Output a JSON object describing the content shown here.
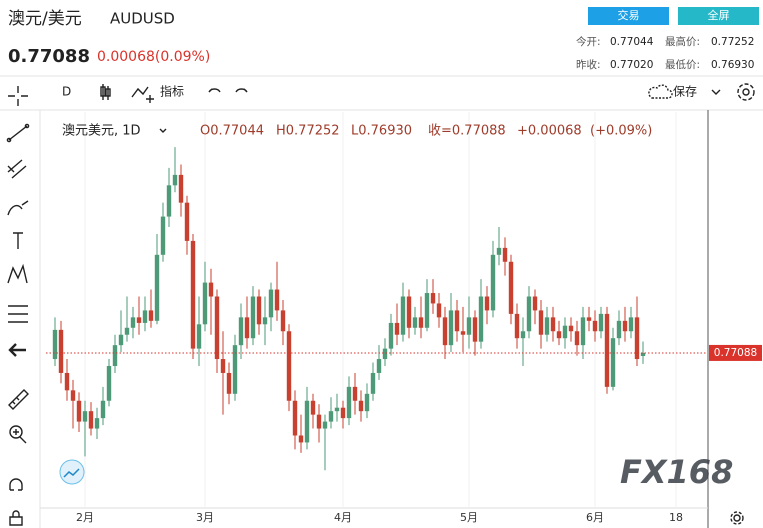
{
  "header": {
    "pair_cn": "澳元/美元",
    "symbol": "AUDUSD",
    "price": "0.77088",
    "change": "0.00068(0.09%)",
    "buttons": [
      "交易",
      "全屏"
    ],
    "stats": [
      [
        "今开:",
        "0.77044",
        "最高价:",
        "0.77252"
      ],
      [
        "昨收:",
        "0.77020",
        "最低价:",
        "0.76930"
      ]
    ]
  },
  "toolbar": {
    "interval": "D",
    "indicators": "指标",
    "save": "保存"
  },
  "legend": {
    "name": "澳元美元, 1D",
    "open": "O0.77044",
    "high": "H0.77252",
    "low": "L0.76930",
    "close": "收=0.77088",
    "change": "+0.00068",
    "change_pct": "(+0.09%)"
  },
  "watermark": "FX168",
  "chart_data": {
    "type": "candlestick",
    "up_color": "#4e9a78",
    "down_color": "#c8402f",
    "last_price": 0.77088,
    "last_price_color": "#d9332b",
    "xlim": [
      -1.5,
      108.5
    ],
    "xticks": [
      {
        "value": 5,
        "label": "2月"
      },
      {
        "value": 25,
        "label": "3月"
      },
      {
        "value": 48,
        "label": "4月"
      },
      {
        "value": 69,
        "label": "5月"
      },
      {
        "value": 90,
        "label": "6月"
      },
      {
        "value": 103.5,
        "label": "18"
      }
    ],
    "ylim": [
      0.749,
      0.8008
    ],
    "ohlc": [
      [
        0.77,
        0.776,
        0.769,
        0.7742
      ],
      [
        0.7742,
        0.7755,
        0.7665,
        0.768
      ],
      [
        0.768,
        0.77,
        0.764,
        0.7655
      ],
      [
        0.7655,
        0.767,
        0.76,
        0.764
      ],
      [
        0.764,
        0.7652,
        0.7595,
        0.761
      ],
      [
        0.761,
        0.764,
        0.756,
        0.7625
      ],
      [
        0.7625,
        0.7638,
        0.759,
        0.76
      ],
      [
        0.76,
        0.763,
        0.7585,
        0.7615
      ],
      [
        0.7615,
        0.766,
        0.7605,
        0.764
      ],
      [
        0.764,
        0.77,
        0.7632,
        0.769
      ],
      [
        0.769,
        0.7735,
        0.768,
        0.772
      ],
      [
        0.772,
        0.777,
        0.771,
        0.7735
      ],
      [
        0.7735,
        0.779,
        0.7725,
        0.7745
      ],
      [
        0.7745,
        0.7775,
        0.773,
        0.776
      ],
      [
        0.776,
        0.779,
        0.7735,
        0.7752
      ],
      [
        0.7752,
        0.779,
        0.774,
        0.777
      ],
      [
        0.777,
        0.78,
        0.7745,
        0.7755
      ],
      [
        0.7755,
        0.788,
        0.775,
        0.785
      ],
      [
        0.785,
        0.7925,
        0.784,
        0.7905
      ],
      [
        0.7905,
        0.7975,
        0.789,
        0.795
      ],
      [
        0.795,
        0.8005,
        0.794,
        0.7965
      ],
      [
        0.7965,
        0.798,
        0.7905,
        0.7925
      ],
      [
        0.7925,
        0.7935,
        0.785,
        0.787
      ],
      [
        0.787,
        0.788,
        0.77,
        0.7715
      ],
      [
        0.7715,
        0.779,
        0.769,
        0.775
      ],
      [
        0.775,
        0.784,
        0.774,
        0.781
      ],
      [
        0.781,
        0.783,
        0.7735,
        0.779
      ],
      [
        0.779,
        0.78,
        0.768,
        0.77
      ],
      [
        0.77,
        0.774,
        0.762,
        0.768
      ],
      [
        0.768,
        0.7695,
        0.7635,
        0.765
      ],
      [
        0.765,
        0.7735,
        0.764,
        0.772
      ],
      [
        0.772,
        0.778,
        0.77,
        0.776
      ],
      [
        0.776,
        0.779,
        0.7715,
        0.773
      ],
      [
        0.773,
        0.7805,
        0.772,
        0.779
      ],
      [
        0.779,
        0.78,
        0.7735,
        0.775
      ],
      [
        0.775,
        0.779,
        0.772,
        0.776
      ],
      [
        0.776,
        0.781,
        0.774,
        0.78
      ],
      [
        0.78,
        0.784,
        0.7755,
        0.777
      ],
      [
        0.777,
        0.7785,
        0.772,
        0.774
      ],
      [
        0.774,
        0.775,
        0.7625,
        0.764
      ],
      [
        0.764,
        0.7655,
        0.757,
        0.759
      ],
      [
        0.759,
        0.762,
        0.7565,
        0.758
      ],
      [
        0.758,
        0.766,
        0.757,
        0.764
      ],
      [
        0.764,
        0.765,
        0.76,
        0.762
      ],
      [
        0.762,
        0.7635,
        0.758,
        0.76
      ],
      [
        0.76,
        0.762,
        0.754,
        0.761
      ],
      [
        0.761,
        0.7645,
        0.76,
        0.7625
      ],
      [
        0.7625,
        0.765,
        0.761,
        0.763
      ],
      [
        0.763,
        0.764,
        0.76,
        0.7615
      ],
      [
        0.7615,
        0.7675,
        0.7605,
        0.766
      ],
      [
        0.766,
        0.768,
        0.762,
        0.764
      ],
      [
        0.764,
        0.7655,
        0.761,
        0.7625
      ],
      [
        0.7625,
        0.7665,
        0.7615,
        0.765
      ],
      [
        0.765,
        0.7695,
        0.764,
        0.768
      ],
      [
        0.768,
        0.772,
        0.767,
        0.77
      ],
      [
        0.77,
        0.773,
        0.769,
        0.7715
      ],
      [
        0.7715,
        0.7765,
        0.7705,
        0.7752
      ],
      [
        0.7752,
        0.778,
        0.772,
        0.7735
      ],
      [
        0.7735,
        0.781,
        0.7725,
        0.779
      ],
      [
        0.779,
        0.78,
        0.773,
        0.7745
      ],
      [
        0.7745,
        0.7775,
        0.7735,
        0.776
      ],
      [
        0.776,
        0.779,
        0.773,
        0.7745
      ],
      [
        0.7745,
        0.7815,
        0.774,
        0.7795
      ],
      [
        0.7795,
        0.7815,
        0.7765,
        0.778
      ],
      [
        0.778,
        0.7795,
        0.7745,
        0.776
      ],
      [
        0.776,
        0.7775,
        0.77,
        0.772
      ],
      [
        0.772,
        0.7795,
        0.771,
        0.777
      ],
      [
        0.777,
        0.7785,
        0.7725,
        0.774
      ],
      [
        0.774,
        0.7775,
        0.771,
        0.7735
      ],
      [
        0.7735,
        0.779,
        0.7715,
        0.776
      ],
      [
        0.776,
        0.777,
        0.7705,
        0.7725
      ],
      [
        0.7725,
        0.7815,
        0.7715,
        0.779
      ],
      [
        0.779,
        0.7805,
        0.775,
        0.777
      ],
      [
        0.777,
        0.787,
        0.776,
        0.785
      ],
      [
        0.785,
        0.789,
        0.7835,
        0.786
      ],
      [
        0.786,
        0.7875,
        0.782,
        0.784
      ],
      [
        0.784,
        0.785,
        0.775,
        0.7765
      ],
      [
        0.7765,
        0.778,
        0.7715,
        0.773
      ],
      [
        0.773,
        0.776,
        0.769,
        0.774
      ],
      [
        0.774,
        0.7805,
        0.773,
        0.779
      ],
      [
        0.779,
        0.78,
        0.775,
        0.777
      ],
      [
        0.777,
        0.7785,
        0.7715,
        0.7735
      ],
      [
        0.7735,
        0.7775,
        0.7725,
        0.776
      ],
      [
        0.776,
        0.7775,
        0.7725,
        0.774
      ],
      [
        0.774,
        0.7755,
        0.772,
        0.773
      ],
      [
        0.773,
        0.776,
        0.7715,
        0.7748
      ],
      [
        0.7748,
        0.776,
        0.7725,
        0.774
      ],
      [
        0.774,
        0.7755,
        0.7705,
        0.772
      ],
      [
        0.772,
        0.7775,
        0.77,
        0.776
      ],
      [
        0.776,
        0.7775,
        0.774,
        0.7755
      ],
      [
        0.7755,
        0.777,
        0.7725,
        0.774
      ],
      [
        0.774,
        0.7775,
        0.773,
        0.7765
      ],
      [
        0.7765,
        0.7775,
        0.765,
        0.766
      ],
      [
        0.766,
        0.7745,
        0.7655,
        0.773
      ],
      [
        0.773,
        0.777,
        0.772,
        0.7755
      ],
      [
        0.7755,
        0.7775,
        0.7725,
        0.774
      ],
      [
        0.774,
        0.7775,
        0.773,
        0.776
      ],
      [
        0.776,
        0.779,
        0.769,
        0.77
      ],
      [
        0.77044,
        0.77252,
        0.7693,
        0.77088
      ]
    ]
  }
}
